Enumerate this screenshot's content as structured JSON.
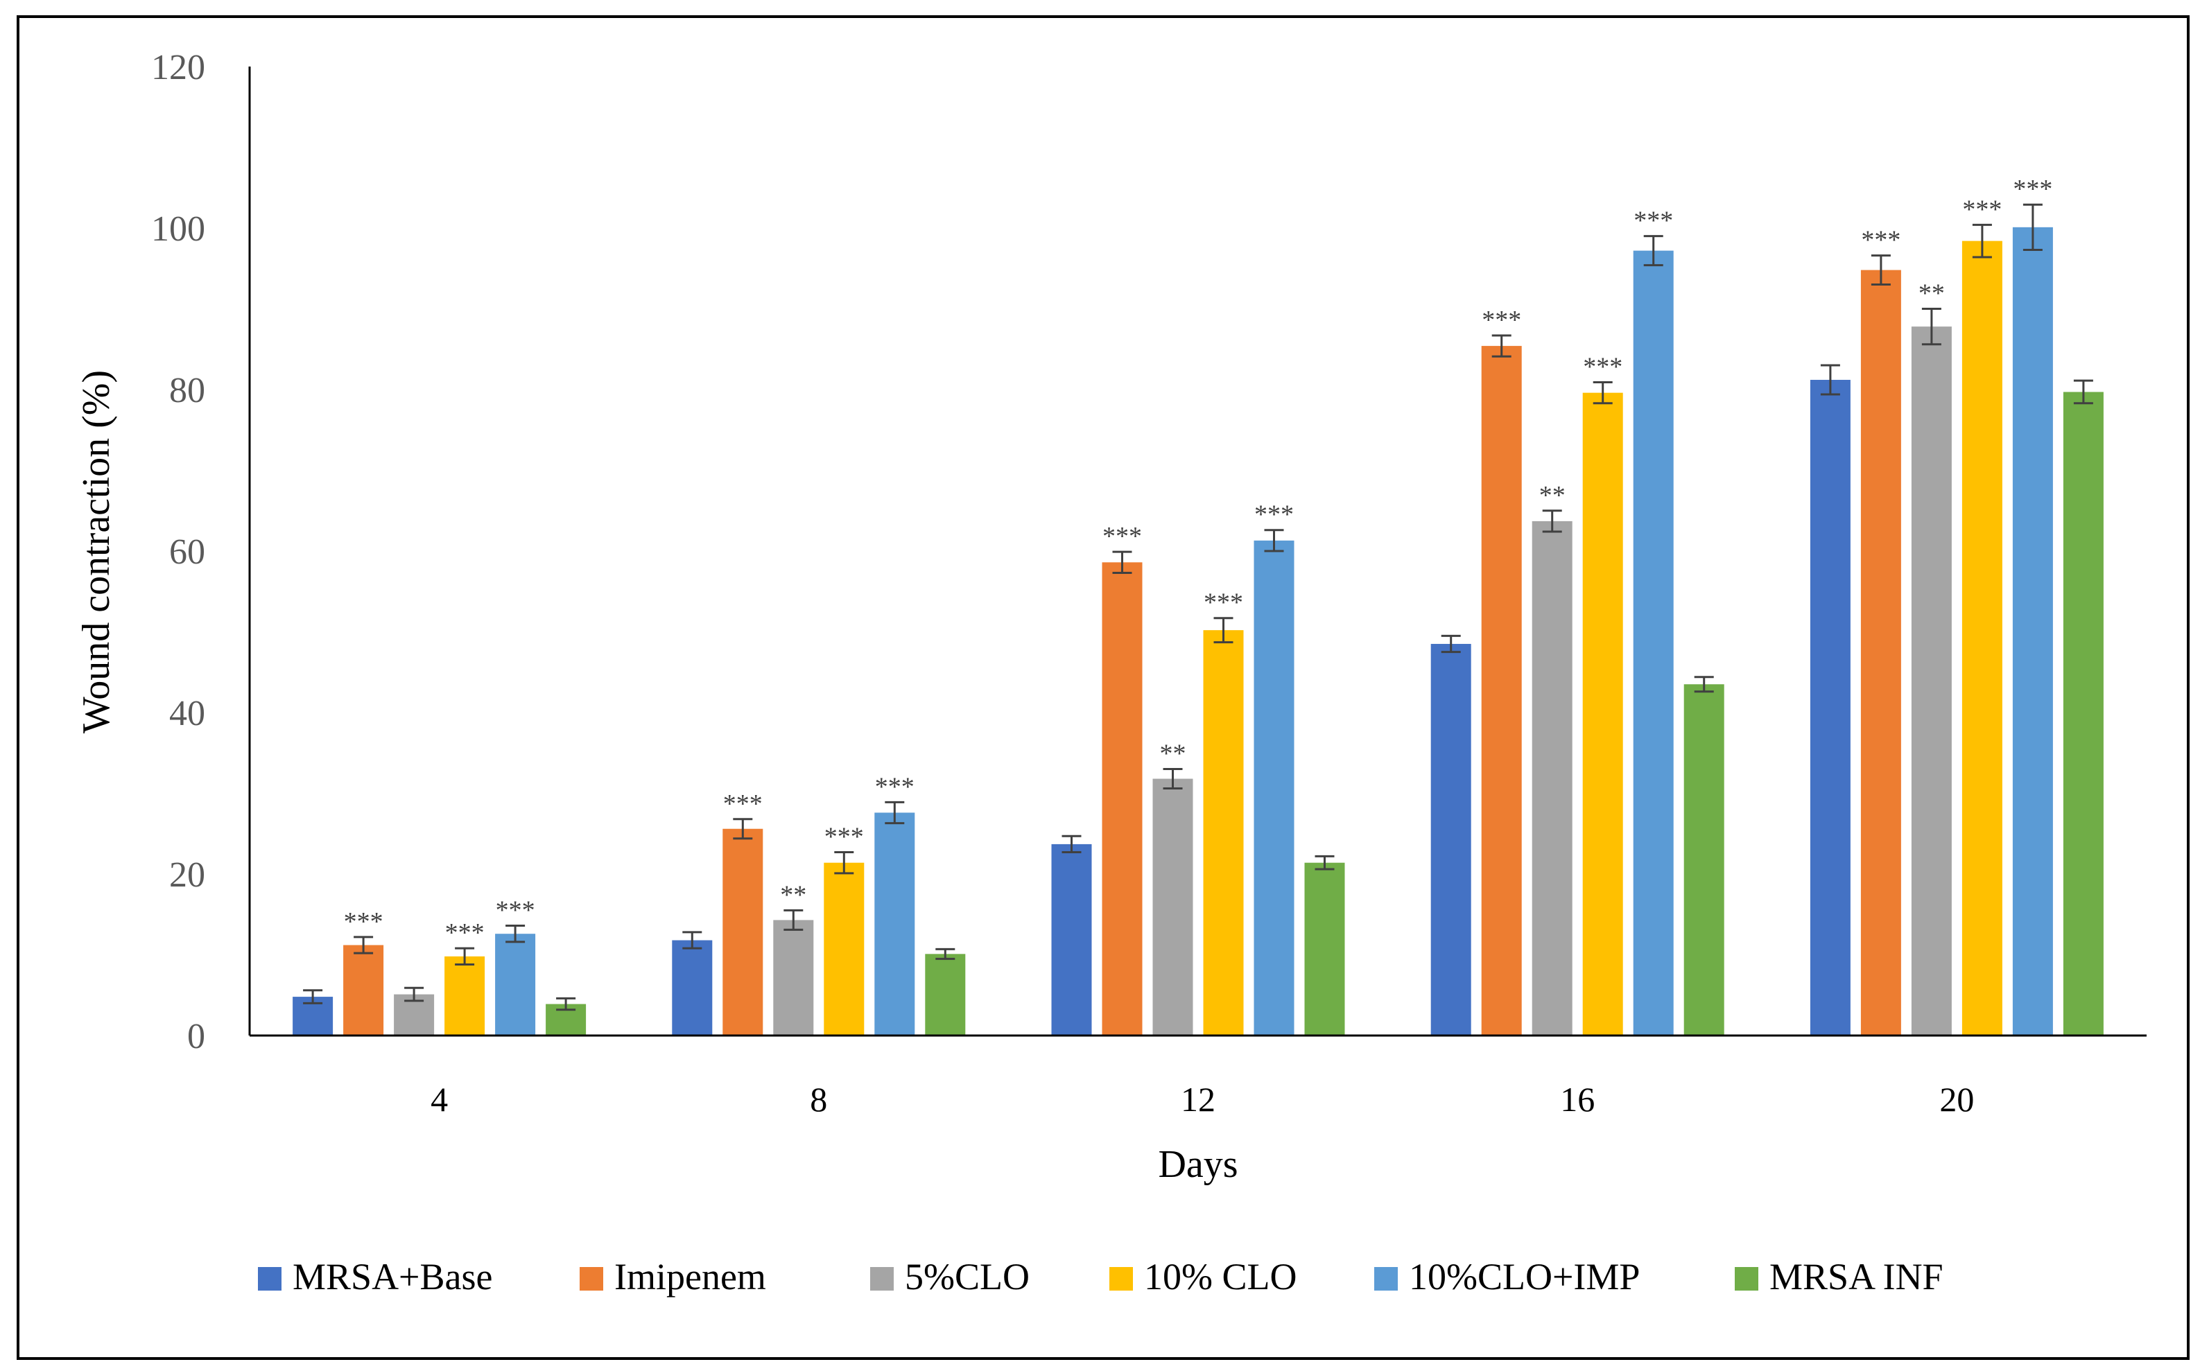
{
  "chart_data": {
    "type": "bar",
    "title": "",
    "xlabel": "Days",
    "ylabel": "Wound contraction (%)",
    "ylim": [
      0,
      120
    ],
    "yticks": [
      0,
      20,
      40,
      60,
      80,
      100,
      120
    ],
    "grid": false,
    "legend_position": "bottom",
    "categories": [
      "4",
      "8",
      "12",
      "16",
      "20"
    ],
    "series": [
      {
        "name": "MRSA+Base",
        "color": "#4472C4",
        "values": [
          4.8,
          11.8,
          23.7,
          48.5,
          81.2
        ],
        "errors": [
          0.8,
          1.0,
          1.0,
          1.0,
          1.8
        ],
        "significance": [
          "",
          "",
          "",
          "",
          ""
        ]
      },
      {
        "name": "Imipenem",
        "color": "#ED7D31",
        "values": [
          11.2,
          25.6,
          58.6,
          85.4,
          94.8
        ],
        "errors": [
          1.0,
          1.2,
          1.3,
          1.3,
          1.8
        ],
        "significance": [
          "***",
          "***",
          "***",
          "***",
          "***"
        ]
      },
      {
        "name": "5%CLO",
        "color": "#A5A5A5",
        "values": [
          5.1,
          14.3,
          31.8,
          63.7,
          87.8
        ],
        "errors": [
          0.8,
          1.2,
          1.2,
          1.3,
          2.2
        ],
        "significance": [
          "",
          "**",
          "**",
          "**",
          "**"
        ]
      },
      {
        "name": "10% CLO",
        "color": "#FFC000",
        "values": [
          9.8,
          21.4,
          50.2,
          79.6,
          98.4
        ],
        "errors": [
          1.0,
          1.3,
          1.5,
          1.3,
          2.0
        ],
        "significance": [
          "***",
          "***",
          "***",
          "***",
          "***"
        ]
      },
      {
        "name": "10%CLO+IMP",
        "color": "#5B9BD5",
        "values": [
          12.6,
          27.6,
          61.3,
          97.2,
          100.1
        ],
        "errors": [
          1.0,
          1.3,
          1.3,
          1.8,
          2.8
        ],
        "significance": [
          "***",
          "***",
          "***",
          "***",
          "***"
        ]
      },
      {
        "name": "MRSA INF",
        "color": "#70AD47",
        "values": [
          3.9,
          10.1,
          21.4,
          43.5,
          79.7
        ],
        "errors": [
          0.7,
          0.6,
          0.8,
          0.9,
          1.4
        ],
        "significance": [
          "",
          "",
          "",
          "",
          ""
        ]
      }
    ]
  },
  "colors": {
    "axis": "#000000",
    "tick_label": "#595959",
    "error_bar": "#404040",
    "annotation": "#404040"
  }
}
